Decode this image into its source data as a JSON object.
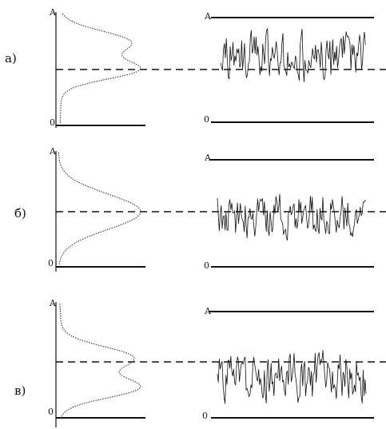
{
  "panels": [
    {
      "label": "а)",
      "top_label": "A",
      "bottom_label": "0",
      "right_top_label": "A",
      "right_bottom_label": "0",
      "distribution": "bimodal-asymmetric",
      "signal_bias": 0.65,
      "signal_spread": 0.32
    },
    {
      "label": "б)",
      "top_label": "A",
      "bottom_label": "0",
      "right_top_label": "A",
      "right_bottom_label": "0",
      "distribution": "unimodal",
      "signal_bias": 0.5,
      "signal_spread": 0.3
    },
    {
      "label": "в)",
      "top_label": "A",
      "bottom_label": "0",
      "right_top_label": "A",
      "right_bottom_label": "0",
      "distribution": "bimodal-asymmetric-low",
      "signal_bias": 0.4,
      "signal_spread": 0.36
    }
  ]
}
